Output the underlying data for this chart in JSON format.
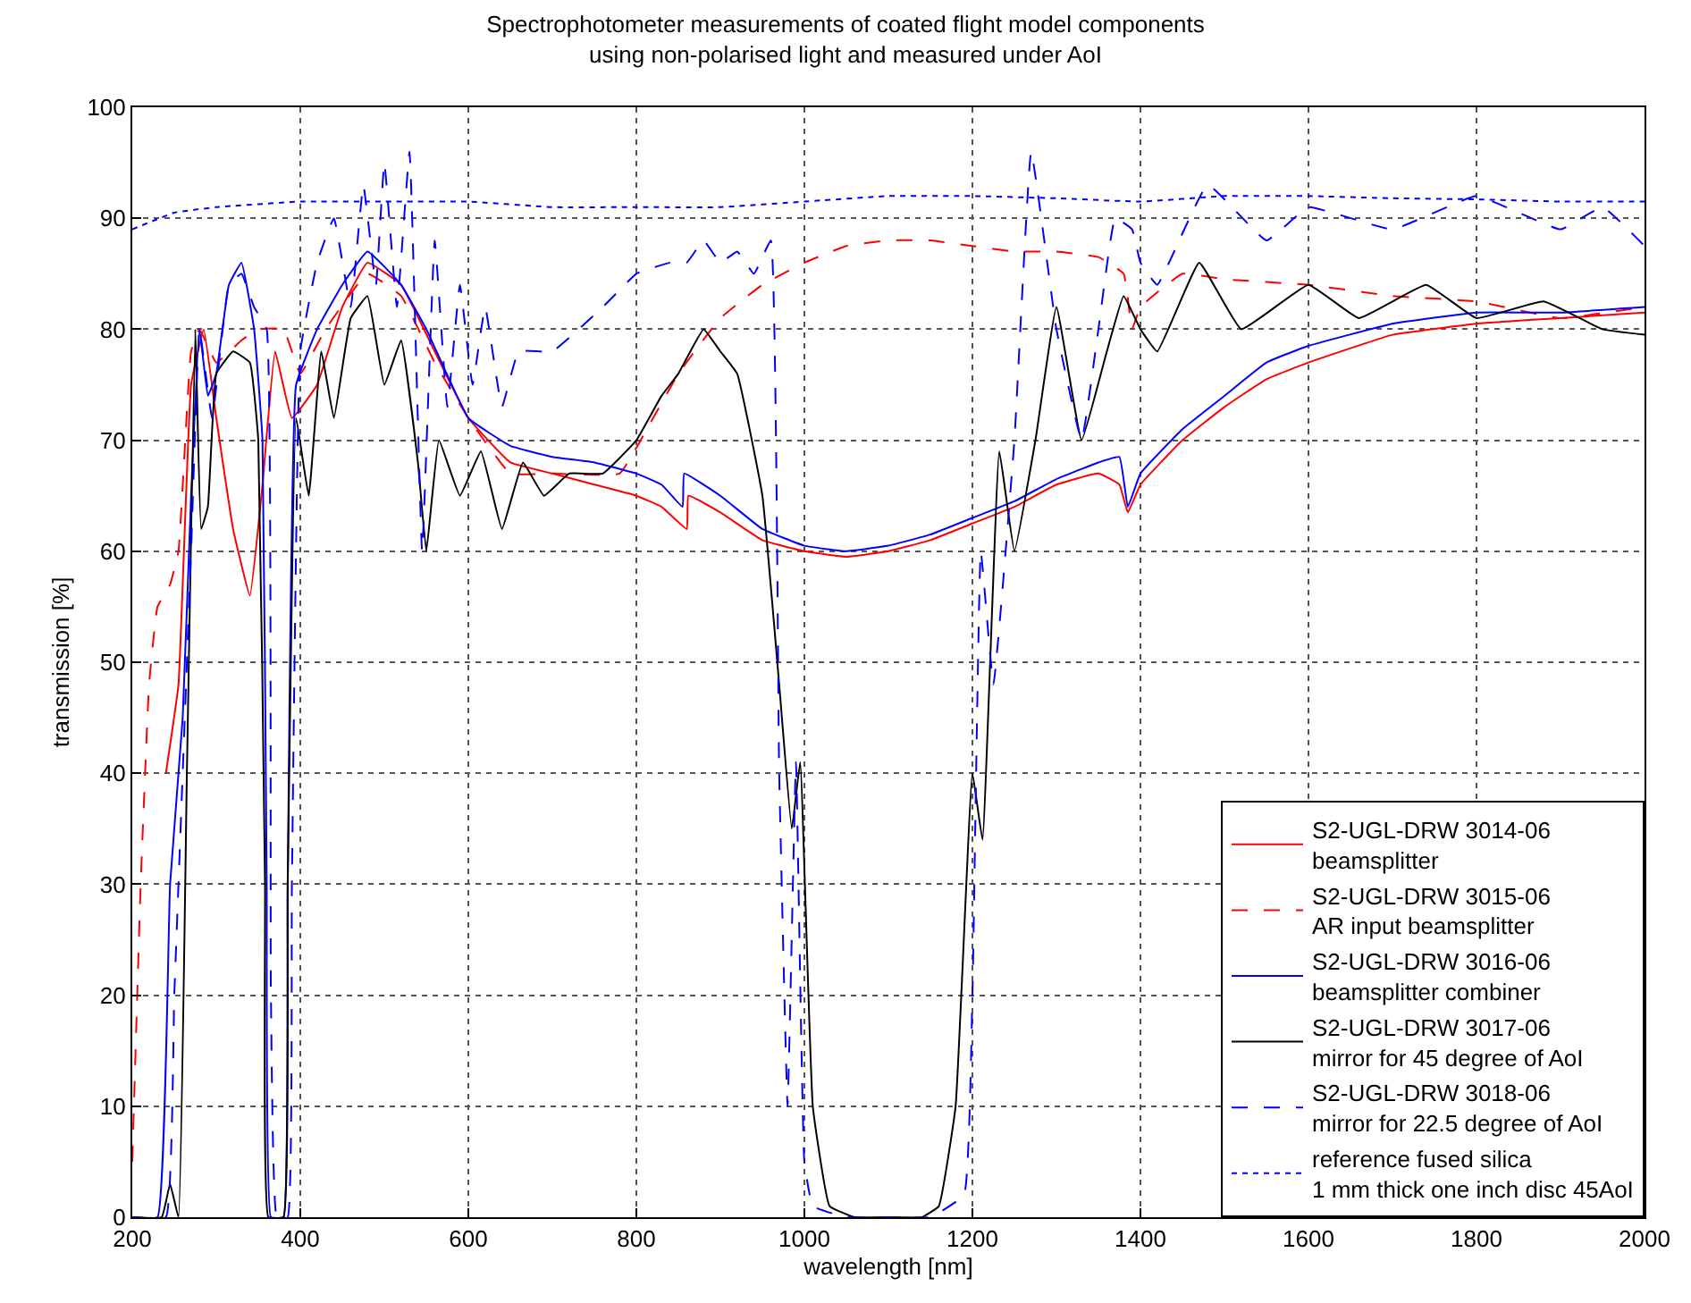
{
  "chart_data": {
    "type": "line",
    "title": "Spectrophotometer measurements of coated flight model components\nusing non-polarised light and measured under AoI",
    "xlabel": "wavelength [nm]",
    "ylabel": "transmission [%]",
    "xlim": [
      200,
      2000
    ],
    "xticks": [
      200,
      400,
      600,
      800,
      1000,
      1200,
      1400,
      1600,
      1800,
      2000
    ],
    "ylim": [
      0,
      100
    ],
    "yticks": [
      0,
      10,
      20,
      30,
      40,
      50,
      60,
      70,
      80,
      90,
      100
    ],
    "grid": true,
    "legend": "bottom right",
    "series": [
      {
        "name": "S2-UGL-DRW 3014-06\nbeamsplitter",
        "color": "#ff0000",
        "line_style": "solid",
        "x": [
          240,
          255,
          270,
          285,
          300,
          320,
          340,
          355,
          370,
          390,
          420,
          450,
          480,
          520,
          560,
          600,
          650,
          700,
          750,
          800,
          830,
          860,
          862,
          900,
          950,
          1000,
          1050,
          1100,
          1150,
          1200,
          1250,
          1300,
          1350,
          1375,
          1385,
          1400,
          1450,
          1500,
          1550,
          1600,
          1700,
          1800,
          1900,
          2000
        ],
        "values": [
          40,
          48,
          75,
          80,
          72,
          62,
          56,
          66,
          78,
          72,
          75,
          82,
          86,
          84,
          78,
          72,
          68,
          67,
          66,
          65,
          64,
          62,
          65,
          63.5,
          61,
          60,
          59.5,
          60,
          61,
          62.5,
          64,
          66,
          67,
          66,
          63.5,
          66,
          70,
          73,
          75.5,
          77,
          79.5,
          80.5,
          81,
          81.5
        ]
      },
      {
        "name": "S2-UGL-DRW 3015-06\nAR input beamsplitter",
        "color": "#ff0000",
        "line_style": "dashed",
        "x": [
          200,
          210,
          220,
          230,
          245,
          255,
          270,
          280,
          300,
          330,
          350,
          380,
          400,
          430,
          480,
          520,
          560,
          600,
          650,
          700,
          780,
          820,
          850,
          900,
          950,
          1000,
          1050,
          1100,
          1150,
          1200,
          1250,
          1300,
          1350,
          1380,
          1390,
          1400,
          1450,
          1500,
          1600,
          1700,
          1800,
          1900,
          2000
        ],
        "values": [
          5,
          30,
          48,
          55,
          57,
          60,
          78,
          80,
          77,
          79,
          80,
          80,
          76,
          80,
          85,
          83,
          77,
          72,
          67,
          67,
          67,
          72,
          76,
          81,
          84,
          86,
          87.5,
          88,
          88,
          87.5,
          87,
          87,
          86.5,
          85,
          80,
          82,
          85,
          84.5,
          84,
          83,
          82.5,
          81,
          82
        ]
      },
      {
        "name": "S2-UGL-DRW 3016-06\nbeamsplitter combiner",
        "color": "#0000ff",
        "line_style": "solid",
        "x": [
          200,
          230,
          245,
          260,
          270,
          280,
          290,
          300,
          315,
          330,
          345,
          355,
          360,
          365,
          380,
          385,
          395,
          420,
          450,
          480,
          520,
          550,
          600,
          650,
          700,
          750,
          800,
          830,
          855,
          857,
          900,
          950,
          1000,
          1050,
          1100,
          1150,
          1200,
          1250,
          1300,
          1350,
          1375,
          1385,
          1400,
          1450,
          1500,
          1550,
          1600,
          1700,
          1800,
          1900,
          2000
        ],
        "values": [
          0,
          0,
          30,
          45,
          65,
          80,
          74,
          76,
          84,
          86,
          80,
          70,
          30,
          0,
          0,
          30,
          75,
          80,
          84,
          87,
          84,
          80,
          72,
          69.5,
          68.5,
          68,
          67,
          66,
          64,
          67,
          65,
          62,
          60.5,
          60,
          60.5,
          61.5,
          63,
          64.5,
          66.5,
          68,
          68.5,
          64,
          67,
          71,
          74,
          77,
          78.5,
          80.5,
          81.5,
          81.5,
          82
        ]
      },
      {
        "name": "S2-UGL-DRW 3017-06\nmirror for 45 degree of AoI",
        "color": "#000000",
        "line_style": "solid",
        "x": [
          200,
          235,
          245,
          255,
          265,
          275,
          282,
          290,
          300,
          320,
          340,
          350,
          358,
          362,
          380,
          385,
          395,
          410,
          425,
          440,
          460,
          480,
          500,
          520,
          540,
          550,
          565,
          590,
          615,
          640,
          665,
          690,
          720,
          760,
          800,
          830,
          850,
          880,
          900,
          920,
          950,
          970,
          985,
          995,
          1010,
          1030,
          1060,
          1100,
          1140,
          1160,
          1180,
          1200,
          1212,
          1232,
          1250,
          1275,
          1300,
          1330,
          1360,
          1380,
          1400,
          1420,
          1470,
          1520,
          1600,
          1660,
          1740,
          1800,
          1880,
          1950,
          2000
        ],
        "values": [
          0,
          0,
          3,
          0,
          40,
          80,
          62,
          64,
          76,
          78,
          77,
          70,
          30,
          0,
          0,
          30,
          72,
          65,
          78,
          72,
          81,
          83,
          75,
          79,
          68,
          60,
          70,
          65,
          69,
          62,
          68,
          65,
          67,
          67,
          70,
          74,
          76,
          80,
          78,
          76,
          65,
          48,
          35,
          41,
          10,
          1,
          0,
          0,
          0,
          1,
          10,
          40,
          34,
          69,
          60,
          70,
          82,
          70,
          78,
          83,
          80,
          78,
          86,
          80,
          84,
          81,
          84,
          81,
          82.5,
          80,
          79.5
        ]
      },
      {
        "name": "S2-UGL-DRW 3018-06\nmirror for 22.5 degree of AoI",
        "color": "#0000ff",
        "line_style": "dashed",
        "x": [
          200,
          240,
          250,
          260,
          270,
          280,
          295,
          315,
          330,
          345,
          360,
          365,
          372,
          385,
          390,
          400,
          420,
          440,
          460,
          475,
          490,
          500,
          515,
          530,
          545,
          560,
          575,
          590,
          605,
          620,
          640,
          660,
          700,
          760,
          800,
          840,
          860,
          880,
          900,
          920,
          940,
          960,
          970,
          980,
          990,
          1000,
          1010,
          1050,
          1100,
          1150,
          1190,
          1200,
          1210,
          1225,
          1250,
          1270,
          1300,
          1330,
          1350,
          1370,
          1390,
          1400,
          1420,
          1480,
          1550,
          1600,
          1700,
          1800,
          1900,
          1950,
          2000
        ],
        "values": [
          0,
          0,
          20,
          40,
          60,
          80,
          72,
          84,
          85,
          82,
          80,
          20,
          0,
          0,
          30,
          78,
          86,
          90,
          82,
          93,
          84,
          95,
          82,
          96,
          60,
          88,
          73,
          84,
          75,
          82,
          73,
          78,
          78,
          82,
          85,
          86,
          86,
          88,
          86,
          87,
          85,
          88,
          40,
          10,
          41,
          5,
          1,
          0,
          0,
          0,
          2,
          20,
          60,
          48,
          70,
          96,
          80,
          70,
          80,
          90,
          89,
          86,
          84,
          93,
          88,
          91,
          89,
          92,
          89,
          91,
          87.5
        ]
      },
      {
        "name": "reference fused silica\n1 mm thick one inch disc 45AoI",
        "color": "#0000ff",
        "line_style": "dotted",
        "x": [
          200,
          250,
          300,
          400,
          500,
          600,
          700,
          800,
          900,
          1000,
          1100,
          1200,
          1300,
          1400,
          1500,
          1600,
          1700,
          1800,
          1900,
          2000
        ],
        "values": [
          89,
          90.5,
          91,
          91.5,
          91.5,
          91.5,
          91,
          91,
          91,
          91.5,
          92,
          92,
          91.8,
          91.5,
          92,
          92,
          91.8,
          91.7,
          91.5,
          91.5
        ]
      }
    ]
  }
}
